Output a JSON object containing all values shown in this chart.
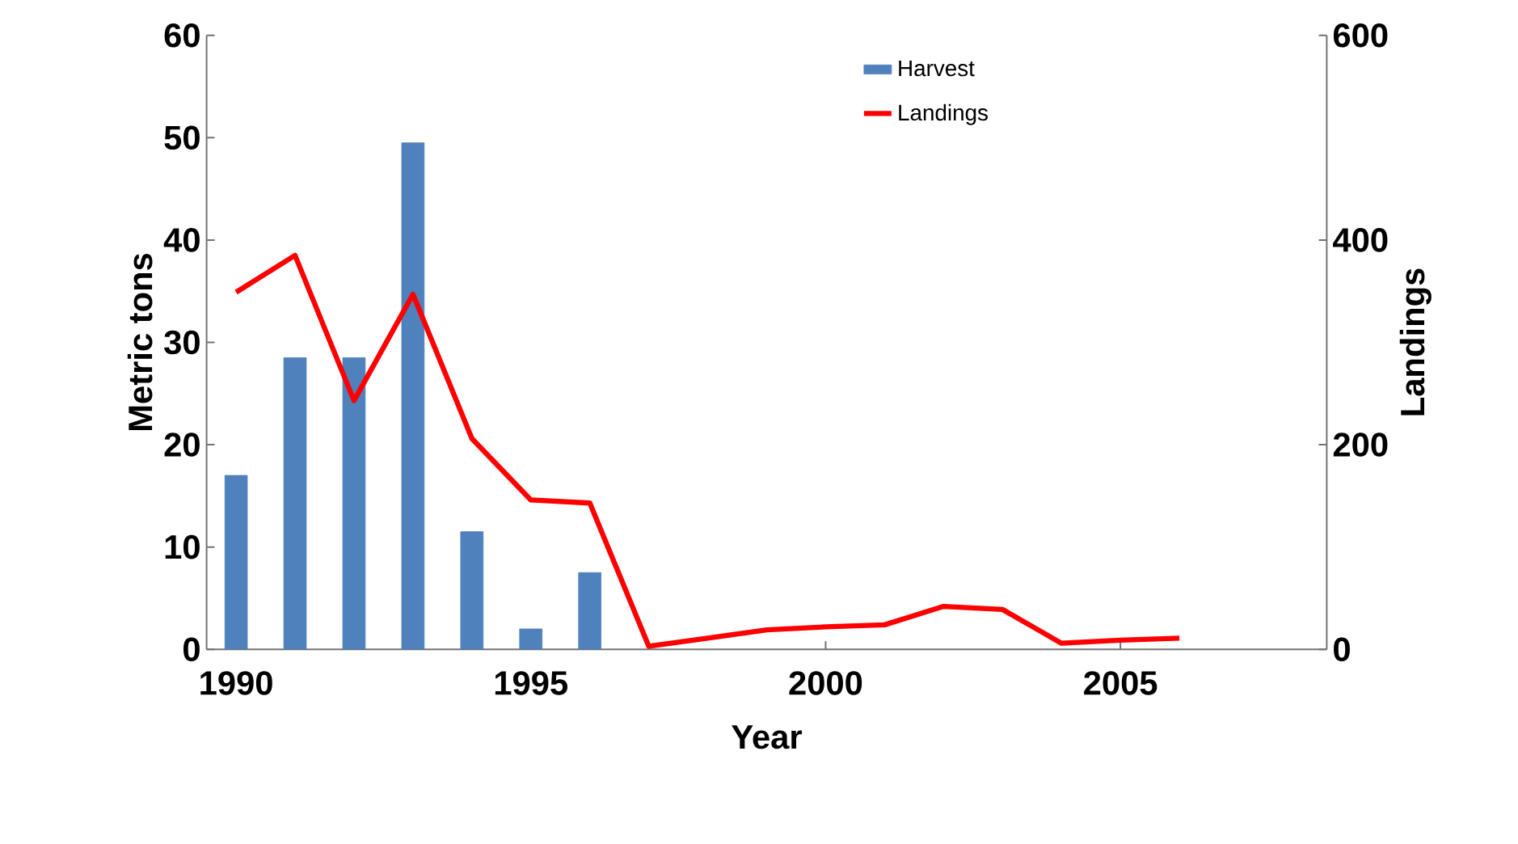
{
  "chart_data": {
    "type": "bar",
    "xlabel": "Year",
    "ylabel": "Metric tons",
    "y2label": "Landings",
    "xlim": [
      1989.5,
      2008.5
    ],
    "xticks": [
      1990,
      1995,
      2000,
      2005
    ],
    "ylim": [
      0,
      60
    ],
    "yticks": [
      0,
      10,
      20,
      30,
      40,
      50,
      60
    ],
    "y2lim": [
      0,
      600
    ],
    "y2ticks": [
      0,
      200,
      400,
      600
    ],
    "legend": "top right",
    "grid": false,
    "series": [
      {
        "name": "Harvest",
        "color": "#4f81bd",
        "x": [
          1990,
          1991,
          1992,
          1993,
          1994,
          1995,
          1996
        ],
        "values": [
          17,
          28.5,
          28.5,
          49.5,
          11.5,
          2,
          7.5
        ]
      },
      {
        "name": "Landings",
        "type": "line",
        "axis": "y2",
        "color": "#ff0000",
        "x": [
          1990,
          1991,
          1992,
          1993,
          1994,
          1995,
          1996,
          1997,
          1998,
          1999,
          2000,
          2001,
          2002,
          2003,
          2004,
          2005,
          2006
        ],
        "values": [
          349,
          385,
          243,
          347,
          206,
          146,
          143,
          3,
          11,
          19,
          22,
          24,
          42,
          39,
          6,
          9,
          11
        ]
      }
    ]
  }
}
